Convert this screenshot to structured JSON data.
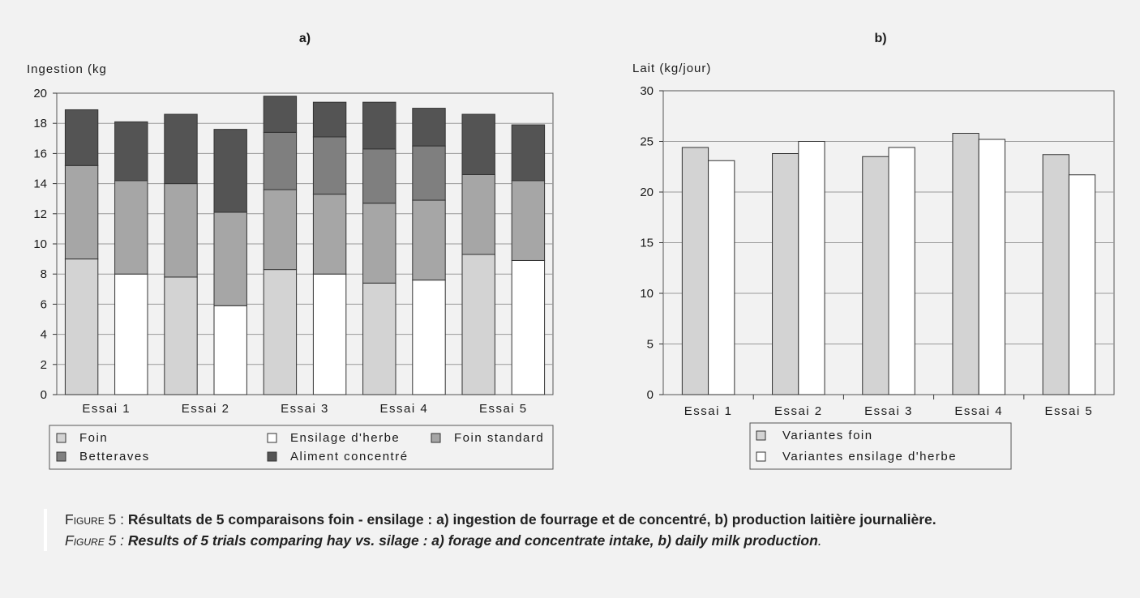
{
  "colors": {
    "foin": "#d3d3d3",
    "ensilage": "#ffffff",
    "foin_standard": "#a6a6a6",
    "betteraves": "#7f7f7f",
    "concentre": "#545454",
    "background": "#f2f2f2"
  },
  "chart_data": [
    {
      "type": "bar",
      "stacked": true,
      "title": "a)",
      "ylabel": "Ingestion (kg",
      "ylim": [
        0,
        20
      ],
      "yticks": [
        0,
        2,
        4,
        6,
        8,
        10,
        12,
        14,
        16,
        18,
        20
      ],
      "categories": [
        "Essai 1",
        "Essai 2",
        "Essai 3",
        "Essai 4",
        "Essai 5"
      ],
      "grid": true,
      "legend_position": "bottom",
      "legend": [
        "Foin",
        "Ensilage d'herbe",
        "Foin standard",
        "Betteraves",
        "Aliment concentré"
      ],
      "bars": [
        {
          "category": "Essai 1",
          "variant": "foin",
          "segments": [
            {
              "series": "Foin",
              "value": 9.0
            },
            {
              "series": "Foin standard",
              "value": 6.2
            },
            {
              "series": "Aliment concentré",
              "value": 3.7
            }
          ]
        },
        {
          "category": "Essai 1",
          "variant": "ensilage",
          "segments": [
            {
              "series": "Ensilage d'herbe",
              "value": 8.0
            },
            {
              "series": "Foin standard",
              "value": 6.2
            },
            {
              "series": "Aliment concentré",
              "value": 3.9
            }
          ]
        },
        {
          "category": "Essai 2",
          "variant": "foin",
          "segments": [
            {
              "series": "Foin",
              "value": 7.8
            },
            {
              "series": "Foin standard",
              "value": 6.2
            },
            {
              "series": "Aliment concentré",
              "value": 4.6
            }
          ]
        },
        {
          "category": "Essai 2",
          "variant": "ensilage",
          "segments": [
            {
              "series": "Ensilage d'herbe",
              "value": 5.9
            },
            {
              "series": "Foin standard",
              "value": 6.2
            },
            {
              "series": "Aliment concentré",
              "value": 5.5
            }
          ]
        },
        {
          "category": "Essai 3",
          "variant": "foin",
          "segments": [
            {
              "series": "Foin",
              "value": 8.3
            },
            {
              "series": "Foin standard",
              "value": 5.3
            },
            {
              "series": "Betteraves",
              "value": 3.8
            },
            {
              "series": "Aliment concentré",
              "value": 2.4
            }
          ]
        },
        {
          "category": "Essai 3",
          "variant": "ensilage",
          "segments": [
            {
              "series": "Ensilage d'herbe",
              "value": 8.0
            },
            {
              "series": "Foin standard",
              "value": 5.3
            },
            {
              "series": "Betteraves",
              "value": 3.8
            },
            {
              "series": "Aliment concentré",
              "value": 2.3
            }
          ]
        },
        {
          "category": "Essai 4",
          "variant": "foin",
          "segments": [
            {
              "series": "Foin",
              "value": 7.4
            },
            {
              "series": "Foin standard",
              "value": 5.3
            },
            {
              "series": "Betteraves",
              "value": 3.6
            },
            {
              "series": "Aliment concentré",
              "value": 3.1
            }
          ]
        },
        {
          "category": "Essai 4",
          "variant": "ensilage",
          "segments": [
            {
              "series": "Ensilage d'herbe",
              "value": 7.6
            },
            {
              "series": "Foin standard",
              "value": 5.3
            },
            {
              "series": "Betteraves",
              "value": 3.6
            },
            {
              "series": "Aliment concentré",
              "value": 2.5
            }
          ]
        },
        {
          "category": "Essai 5",
          "variant": "foin",
          "segments": [
            {
              "series": "Foin",
              "value": 9.3
            },
            {
              "series": "Foin standard",
              "value": 5.3
            },
            {
              "series": "Aliment concentré",
              "value": 4.0
            }
          ]
        },
        {
          "category": "Essai 5",
          "variant": "ensilage",
          "segments": [
            {
              "series": "Ensilage d'herbe",
              "value": 8.9
            },
            {
              "series": "Foin standard",
              "value": 5.3
            },
            {
              "series": "Aliment concentré",
              "value": 3.7
            }
          ]
        }
      ]
    },
    {
      "type": "bar",
      "title": "b)",
      "ylabel": "Lait (kg/jour)",
      "ylim": [
        0,
        30
      ],
      "yticks": [
        0,
        5,
        10,
        15,
        20,
        25,
        30
      ],
      "categories": [
        "Essai 1",
        "Essai 2",
        "Essai 3",
        "Essai 4",
        "Essai 5"
      ],
      "grid": true,
      "legend_position": "bottom",
      "series": [
        {
          "name": "Variantes foin",
          "values": [
            24.4,
            23.8,
            23.5,
            25.8,
            23.7
          ]
        },
        {
          "name": "Variantes ensilage d'herbe",
          "values": [
            23.1,
            25.0,
            24.4,
            25.2,
            21.7
          ]
        }
      ]
    }
  ],
  "caption": {
    "fr_prefix": "Figure 5 : ",
    "fr_text": "Résultats de 5 comparaisons foin - ensilage : a) ingestion de fourrage et de concentré, b) production laitière journalière.",
    "en_prefix": "Figure 5 : ",
    "en_text": "Results of 5 trials comparing hay vs. silage : a) forage and concentrate intake, b) daily milk production",
    "en_end": "."
  }
}
